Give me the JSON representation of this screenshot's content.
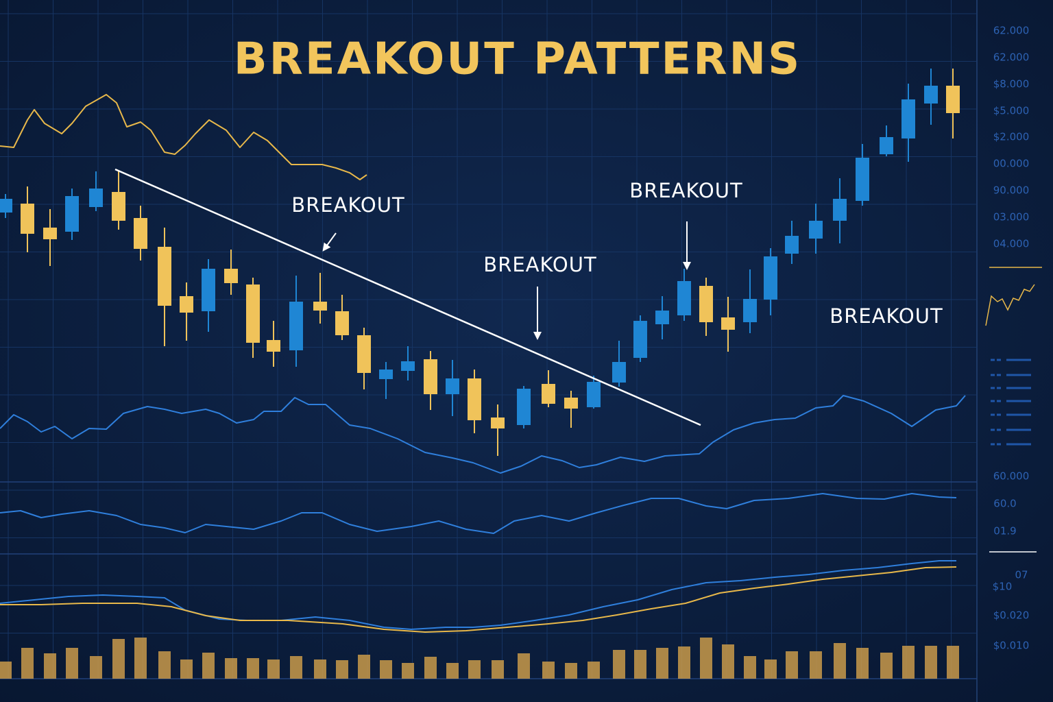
{
  "chart_data": {
    "type": "candlestick",
    "title": "BREAKOUT PATTERNS",
    "annotations": [
      "BREAKOUT",
      "BREAKOUT",
      "BREAKOUT",
      "BREAKOUT"
    ],
    "axis_labels": [
      "62.000",
      "62.000",
      "$8.000",
      "$5.000",
      "$2.000",
      "00.000",
      "90.000",
      "03.000",
      "04.000",
      "60.000",
      "60.0",
      "01.9",
      "$10",
      "07",
      "$0.020",
      "$0.010"
    ],
    "grid": true,
    "up_color": "#1f86d4",
    "down_color": "#f0c35a",
    "xlim": [
      0,
      1420
    ],
    "ylim": [
      0,
      700
    ],
    "x": [
      8,
      40,
      73,
      105,
      140,
      173,
      205,
      240,
      272,
      304,
      337,
      369,
      399,
      432,
      467,
      499,
      531,
      563,
      595,
      628,
      660,
      692,
      726,
      764,
      800,
      833,
      866,
      903,
      934,
      966,
      998,
      1030,
      1062,
      1094,
      1124,
      1155,
      1190,
      1225,
      1258,
      1293,
      1325,
      1358,
      1390
    ],
    "open": [
      390,
      403,
      368,
      362,
      398,
      420,
      382,
      340,
      268,
      246,
      308,
      285,
      204,
      189,
      260,
      246,
      211,
      147,
      159,
      176,
      125,
      148,
      91,
      80,
      140,
      120,
      106,
      142,
      178,
      227,
      240,
      283,
      237,
      230,
      263,
      330,
      352,
      378,
      407,
      475,
      498,
      549,
      575
    ],
    "high": [
      417,
      428,
      395,
      425,
      450,
      450,
      400,
      368,
      288,
      322,
      336,
      295,
      232,
      298,
      302,
      270,
      222,
      172,
      195,
      188,
      175,
      161,
      110,
      137,
      160,
      130,
      152,
      203,
      240,
      268,
      308,
      295,
      267,
      307,
      338,
      378,
      403,
      440,
      490,
      517,
      578,
      600,
      600
    ],
    "low": [
      382,
      332,
      312,
      350,
      392,
      365,
      320,
      195,
      203,
      216,
      270,
      178,
      165,
      165,
      228,
      204,
      132,
      118,
      145,
      102,
      93,
      68,
      35,
      75,
      106,
      76,
      104,
      136,
      172,
      205,
      232,
      210,
      187,
      214,
      240,
      315,
      330,
      345,
      400,
      472,
      464,
      518,
      498
    ],
    "close": [
      410,
      359,
      351,
      414,
      425,
      378,
      337,
      254,
      244,
      308,
      287,
      200,
      187,
      260,
      247,
      211,
      156,
      161,
      173,
      125,
      148,
      87,
      75,
      133,
      111,
      104,
      143,
      172,
      232,
      247,
      290,
      230,
      219,
      264,
      326,
      356,
      378,
      410,
      470,
      500,
      555,
      575,
      535
    ],
    "lines": [
      {
        "color": "#e8b84a",
        "panel": "main",
        "x": [
          0,
          20,
          40,
          50,
          65,
          90,
          105,
          125,
          155,
          170,
          185,
          205,
          220,
          240,
          255,
          270,
          285,
          305,
          330,
          350,
          370,
          390,
          410,
          425,
          450,
          470,
          490,
          510,
          525,
          535
        ],
        "values": [
          487,
          485,
          525,
          540,
          520,
          505,
          520,
          545,
          562,
          550,
          515,
          522,
          510,
          478,
          475,
          488,
          505,
          525,
          510,
          485,
          507,
          495,
          475,
          460,
          460,
          460,
          455,
          448,
          438,
          445
        ]
      },
      {
        "color": "#2f7fdc",
        "panel": "main",
        "x": [
          0,
          20,
          40,
          60,
          80,
          105,
          130,
          155,
          180,
          215,
          240,
          265,
          300,
          320,
          345,
          370,
          385,
          410,
          430,
          450,
          475,
          510,
          540,
          580,
          620,
          660,
          690,
          730,
          760,
          790,
          820,
          845,
          870,
          905,
          940,
          970,
          1020,
          1040,
          1070,
          1100,
          1130,
          1160,
          1190,
          1215,
          1230,
          1260,
          1300,
          1330,
          1365,
          1395,
          1408
        ],
        "values": [
          75,
          95,
          85,
          70,
          78,
          60,
          75,
          74,
          97,
          107,
          103,
          97,
          103,
          97,
          83,
          88,
          100,
          100,
          120,
          110,
          110,
          80,
          75,
          60,
          40,
          32,
          25,
          10,
          20,
          35,
          28,
          18,
          22,
          33,
          27,
          35,
          38,
          55,
          73,
          83,
          88,
          90,
          105,
          108,
          123,
          115,
          97,
          78,
          102,
          108,
          123
        ]
      },
      {
        "color": "#2f7fdc",
        "panel": "indicator",
        "x": [
          0,
          30,
          60,
          90,
          130,
          170,
          205,
          240,
          270,
          300,
          330,
          370,
          410,
          440,
          470,
          510,
          550,
          600,
          640,
          680,
          720,
          750,
          790,
          830,
          870,
          910,
          950,
          990,
          1030,
          1060,
          1100,
          1150,
          1200,
          1250,
          1290,
          1330,
          1370,
          1395
        ],
        "values": [
          57,
          60,
          50,
          55,
          60,
          53,
          40,
          35,
          28,
          40,
          37,
          33,
          45,
          57,
          57,
          40,
          30,
          37,
          45,
          33,
          27,
          45,
          53,
          45,
          57,
          68,
          78,
          78,
          67,
          63,
          75,
          78,
          85,
          78,
          77,
          85,
          80,
          79
        ]
      },
      {
        "color": "#2f7fdc",
        "panel": "volume",
        "x": [
          0,
          50,
          100,
          150,
          200,
          240,
          270,
          320,
          360,
          410,
          460,
          510,
          560,
          600,
          650,
          690,
          730,
          780,
          830,
          880,
          930,
          980,
          1030,
          1080,
          1130,
          1180,
          1230,
          1280,
          1330,
          1370,
          1395
        ],
        "values": [
          110,
          115,
          120,
          122,
          120,
          118,
          100,
          87,
          85,
          85,
          90,
          85,
          75,
          72,
          75,
          75,
          78,
          85,
          93,
          105,
          115,
          130,
          140,
          143,
          148,
          152,
          158,
          162,
          168,
          172,
          172
        ]
      },
      {
        "color": "#e8b84a",
        "panel": "volume",
        "x": [
          0,
          60,
          120,
          200,
          250,
          300,
          350,
          420,
          500,
          560,
          620,
          680,
          740,
          800,
          850,
          900,
          950,
          1000,
          1050,
          1100,
          1150,
          1200,
          1250,
          1300,
          1350,
          1395
        ],
        "values": [
          108,
          108,
          110,
          110,
          105,
          92,
          85,
          85,
          80,
          72,
          68,
          70,
          75,
          80,
          85,
          93,
          102,
          110,
          125,
          132,
          138,
          145,
          150,
          155,
          162,
          163
        ]
      }
    ],
    "indicator_ylim": [
      0,
      100
    ],
    "volume_ylim": [
      0,
      180
    ],
    "volume_color": "#c99a4a",
    "volume": [
      25,
      45,
      37,
      45,
      33,
      58,
      60,
      40,
      28,
      38,
      30,
      30,
      28,
      33,
      28,
      27,
      35,
      27,
      23,
      32,
      23,
      27,
      27,
      37,
      25,
      23,
      25,
      42,
      42,
      45,
      47,
      60,
      50,
      33,
      28,
      40,
      40,
      52,
      45,
      38,
      48,
      48,
      48
    ]
  }
}
